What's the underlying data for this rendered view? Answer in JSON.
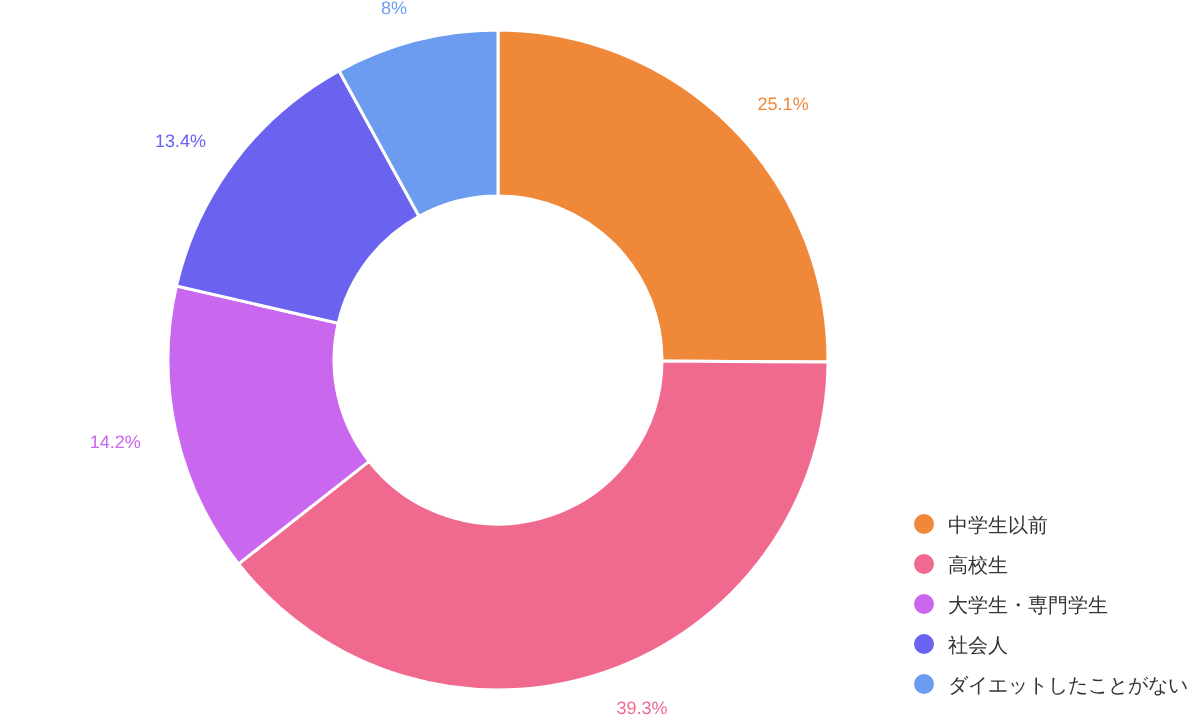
{
  "chart_data": {
    "type": "donut",
    "categories": [
      "中学生以前",
      "高校生",
      "大学生・専門学生",
      "社会人",
      "ダイエットしたことがない"
    ],
    "values": [
      25.1,
      39.3,
      14.2,
      13.4,
      8
    ],
    "value_labels": [
      "25.1%",
      "39.3%",
      "14.2%",
      "13.4%",
      "8%"
    ],
    "colors": [
      "#f0883a",
      "#f06a8f",
      "#c967ee",
      "#6a63f0",
      "#6b9cf0"
    ],
    "legend": "bottom right"
  }
}
